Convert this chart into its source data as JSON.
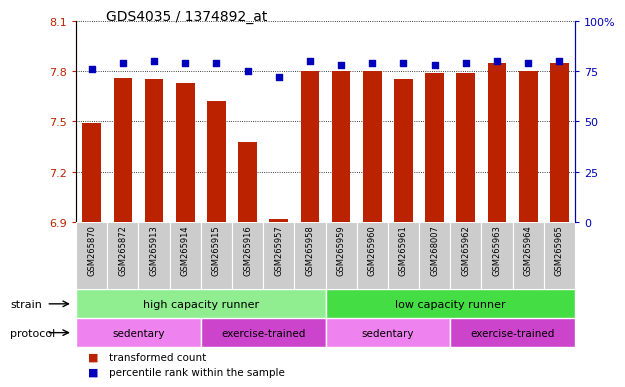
{
  "title": "GDS4035 / 1374892_at",
  "samples": [
    "GSM265870",
    "GSM265872",
    "GSM265913",
    "GSM265914",
    "GSM265915",
    "GSM265916",
    "GSM265957",
    "GSM265958",
    "GSM265959",
    "GSM265960",
    "GSM265961",
    "GSM268007",
    "GSM265962",
    "GSM265963",
    "GSM265964",
    "GSM265965"
  ],
  "transformed_count": [
    7.49,
    7.76,
    7.75,
    7.73,
    7.62,
    7.38,
    6.92,
    7.8,
    7.8,
    7.8,
    7.75,
    7.79,
    7.79,
    7.85,
    7.8,
    7.85
  ],
  "percentile_rank": [
    76,
    79,
    80,
    79,
    79,
    75,
    72,
    80,
    78,
    79,
    79,
    78,
    79,
    80,
    79,
    80
  ],
  "strain_groups": [
    {
      "label": "high capacity runner",
      "start": 0,
      "end": 7,
      "color": "#90EE90"
    },
    {
      "label": "low capacity runner",
      "start": 8,
      "end": 15,
      "color": "#44DD44"
    }
  ],
  "protocol_groups": [
    {
      "label": "sedentary",
      "start": 0,
      "end": 3,
      "color": "#EE82EE"
    },
    {
      "label": "exercise-trained",
      "start": 4,
      "end": 7,
      "color": "#CC44CC"
    },
    {
      "label": "sedentary",
      "start": 8,
      "end": 11,
      "color": "#EE82EE"
    },
    {
      "label": "exercise-trained",
      "start": 12,
      "end": 15,
      "color": "#CC44CC"
    }
  ],
  "bar_color": "#BB2200",
  "dot_color": "#0000BB",
  "ylim_left": [
    6.9,
    8.1
  ],
  "yticks_left": [
    6.9,
    7.2,
    7.5,
    7.8,
    8.1
  ],
  "ytick_labels_left": [
    "6.9",
    "7.2",
    "7.5",
    "7.8",
    "8.1"
  ],
  "ylim_right": [
    0,
    100
  ],
  "yticks_right": [
    0,
    25,
    50,
    75,
    100
  ],
  "ytick_labels_right": [
    "0",
    "25",
    "50",
    "75",
    "100%"
  ],
  "strain_label": "strain",
  "protocol_label": "protocol",
  "legend_bar_label": "transformed count",
  "legend_dot_label": "percentile rank within the sample",
  "tick_bg_color": "#CCCCCC",
  "bar_width": 0.6
}
